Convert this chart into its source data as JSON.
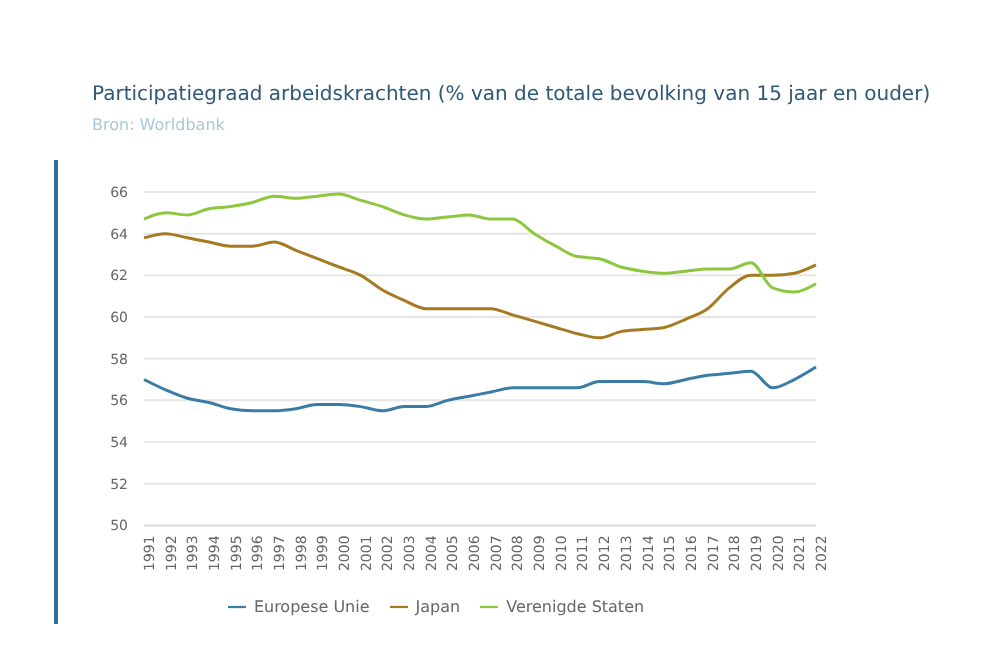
{
  "chart_data": {
    "type": "line",
    "title": "Participatiegraad arbeidskrachten (% van de totale bevolking van 15 jaar en ouder)",
    "subtitle": "Bron: Worldbank",
    "categories": [
      "1991",
      "1992",
      "1993",
      "1994",
      "1995",
      "1996",
      "1997",
      "1998",
      "1999",
      "2000",
      "2001",
      "2002",
      "2003",
      "2004",
      "2005",
      "2006",
      "2007",
      "2008",
      "2009",
      "2010",
      "2011",
      "2012",
      "2013",
      "2014",
      "2015",
      "2016",
      "2017",
      "2018",
      "2019",
      "2020",
      "2021",
      "2022"
    ],
    "series": [
      {
        "name": "Europese Unie",
        "color": "#3a7ca5",
        "values": [
          57.0,
          56.5,
          56.1,
          55.9,
          55.6,
          55.5,
          55.5,
          55.6,
          55.8,
          55.8,
          55.7,
          55.5,
          55.7,
          55.7,
          56.0,
          56.2,
          56.4,
          56.6,
          56.6,
          56.6,
          56.6,
          56.9,
          56.9,
          56.9,
          56.8,
          57.0,
          57.2,
          57.3,
          57.4,
          56.6,
          57.0,
          57.6
        ]
      },
      {
        "name": "Japan",
        "color": "#a57a22",
        "values": [
          63.8,
          64.0,
          63.8,
          63.6,
          63.4,
          63.4,
          63.6,
          63.2,
          62.8,
          62.4,
          62.0,
          61.3,
          60.8,
          60.4,
          60.4,
          60.4,
          60.4,
          60.1,
          59.8,
          59.5,
          59.2,
          59.0,
          59.3,
          59.4,
          59.5,
          59.9,
          60.4,
          61.4,
          62.0,
          62.0,
          62.1,
          62.5
        ]
      },
      {
        "name": "Verenigde Staten",
        "color": "#8dc63f",
        "values": [
          64.7,
          65.0,
          64.9,
          65.2,
          65.3,
          65.5,
          65.8,
          65.7,
          65.8,
          65.9,
          65.6,
          65.3,
          64.9,
          64.7,
          64.8,
          64.9,
          64.7,
          64.7,
          64.0,
          63.4,
          62.9,
          62.8,
          62.4,
          62.2,
          62.1,
          62.2,
          62.3,
          62.3,
          62.6,
          61.4,
          61.2,
          61.6
        ]
      }
    ],
    "ylim": [
      50,
      66
    ],
    "yticks": [
      50,
      52,
      54,
      56,
      58,
      60,
      62,
      64,
      66
    ],
    "grid": "y",
    "legend": "bottom",
    "marker": "none",
    "line_style": "solid"
  }
}
